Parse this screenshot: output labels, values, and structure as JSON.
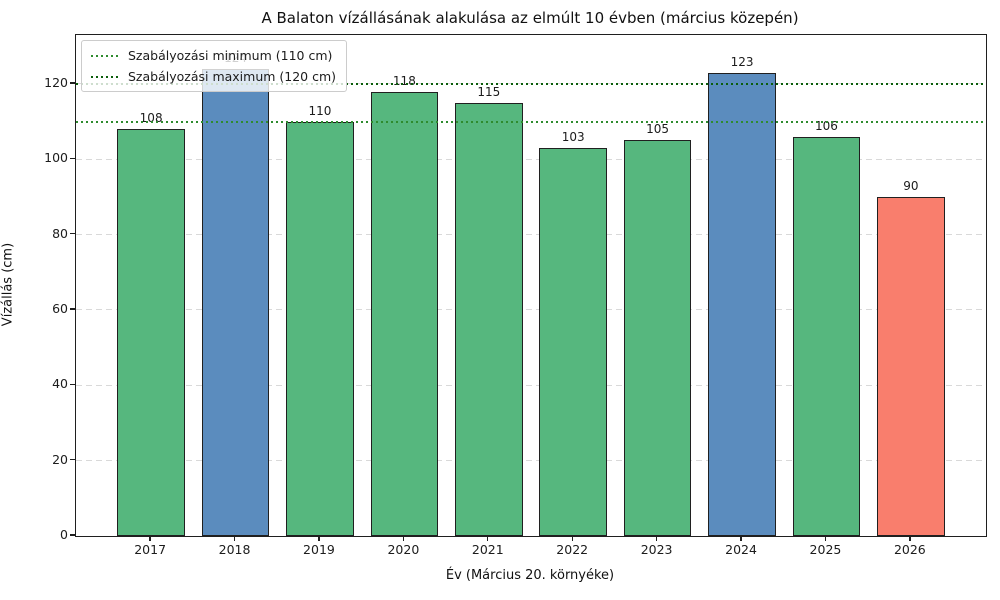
{
  "chart_data": {
    "type": "bar",
    "title": "A Balaton vízállásának alakulása az elmúlt 10 évben (március közepén)",
    "xlabel": "Év (Március 20. környéke)",
    "ylabel": "Vízállás (cm)",
    "categories": [
      "2017",
      "2018",
      "2019",
      "2020",
      "2021",
      "2022",
      "2023",
      "2024",
      "2025",
      "2026"
    ],
    "values": [
      108,
      124,
      110,
      118,
      115,
      103,
      105,
      123,
      106,
      90
    ],
    "bar_colors": [
      "#56b77e",
      "#5b8cbe",
      "#56b77e",
      "#56b77e",
      "#56b77e",
      "#56b77e",
      "#56b77e",
      "#5b8cbe",
      "#56b77e",
      "#f97e6d"
    ],
    "bar_edge_color": "#202020",
    "yticks": [
      0,
      20,
      40,
      60,
      80,
      100,
      120
    ],
    "ylim": [
      0,
      133
    ],
    "grid": "horizontal dashed light-gray",
    "legend_position": "upper-left",
    "reference_lines": [
      {
        "label": "Szabályozási minimum (110 cm)",
        "value": 110,
        "color": "#2e8b2e",
        "style": "dotted"
      },
      {
        "label": "Szabályozási maximum (120 cm)",
        "value": 120,
        "color": "#0b5d0b",
        "style": "dotted"
      }
    ]
  }
}
